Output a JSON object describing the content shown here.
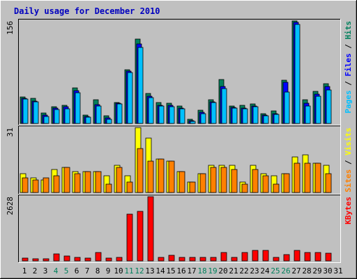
{
  "chart_data": {
    "type": "bar",
    "title": "Daily usage for December 2010",
    "x_labels": [
      "1",
      "2",
      "3",
      "4",
      "5",
      "6",
      "7",
      "8",
      "9",
      "10",
      "11",
      "12",
      "13",
      "14",
      "15",
      "16",
      "17",
      "18",
      "19",
      "20",
      "21",
      "22",
      "23",
      "24",
      "25",
      "26",
      "27",
      "28",
      "29",
      "30",
      "31"
    ],
    "weekend_days": [
      "4",
      "5",
      "11",
      "12",
      "18",
      "19",
      "25",
      "26"
    ],
    "colors": {
      "background": "#c0c0c0",
      "title": "#0000c0",
      "hits": "#00805c",
      "files": "#0000ff",
      "pages": "#00c0ff",
      "visits": "#ffff00",
      "sites": "#ff8000",
      "kbytes": "#ff0000",
      "weekday_label": "#000000",
      "weekend_label": "#00805c"
    },
    "panels": [
      {
        "ymax_label": "156",
        "ylim": [
          0,
          156
        ],
        "legend": [
          {
            "text": "Pages",
            "color": "#00c0ff"
          },
          {
            "text": " / ",
            "color": "#000000"
          },
          {
            "text": "Files",
            "color": "#0000ff"
          },
          {
            "text": " / ",
            "color": "#000000"
          },
          {
            "text": "Hits",
            "color": "#00805c"
          }
        ],
        "series": [
          {
            "name": "Hits",
            "color": "#00805c",
            "values": [
              40,
              38,
              16,
              25,
              28,
              54,
              13,
              36,
              12,
              32,
              82,
              128,
              46,
              32,
              31,
              27,
              6,
              20,
              36,
              67,
              27,
              28,
              30,
              15,
              19,
              66,
              156,
              36,
              49,
              61,
              0
            ]
          },
          {
            "name": "Files",
            "color": "#0000ff",
            "values": [
              38,
              34,
              13,
              23,
              25,
              50,
              11,
              29,
              8,
              31,
              80,
              121,
              41,
              28,
              28,
              23,
              4,
              17,
              33,
              56,
              24,
              23,
              26,
              13,
              15,
              63,
              154,
              31,
              45,
              56,
              0
            ]
          },
          {
            "name": "Pages",
            "color": "#00c0ff",
            "values": [
              37,
              33,
              11,
              21,
              22,
              47,
              10,
              27,
              6,
              30,
              77,
              116,
              39,
              27,
              25,
              22,
              3,
              15,
              32,
              53,
              23,
              22,
              25,
              12,
              14,
              48,
              151,
              27,
              41,
              51,
              0
            ]
          }
        ]
      },
      {
        "ymax_label": "31",
        "ylim": [
          0,
          31
        ],
        "legend": [
          {
            "text": "Sites",
            "color": "#ff8000"
          },
          {
            "text": " / ",
            "color": "#000000"
          },
          {
            "text": "Visits",
            "color": "#ffff00"
          }
        ],
        "series": [
          {
            "name": "Visits",
            "color": "#ffff00",
            "values": [
              9,
              7,
              6,
              11,
              12,
              10,
              10,
              10,
              8,
              13,
              8,
              31,
              26,
              16,
              15,
              10,
              5,
              9,
              13,
              13,
              13,
              5,
              13,
              9,
              8,
              9,
              17,
              18,
              14,
              13,
              0
            ]
          },
          {
            "name": "Sites",
            "color": "#ff8000",
            "values": [
              7,
              6,
              7,
              8,
              12,
              9,
              10,
              10,
              4,
              12,
              5,
              21,
              15,
              16,
              15,
              10,
              5,
              9,
              12,
              12,
              11,
              4,
              11,
              8,
              4,
              9,
              14,
              14,
              14,
              9,
              0
            ]
          }
        ]
      },
      {
        "ymax_label": "2628",
        "ylim": [
          0,
          2628
        ],
        "legend": [
          {
            "text": "KBytes",
            "color": "#ff0000"
          }
        ],
        "series": [
          {
            "name": "KBytes",
            "color": "#ff0000",
            "values": [
              100,
              80,
              80,
              290,
              200,
              130,
              120,
              330,
              120,
              130,
              1910,
              2020,
              2628,
              150,
              240,
              140,
              150,
              150,
              150,
              350,
              130,
              350,
              440,
              440,
              130,
              270,
              420,
              350,
              350,
              300,
              0
            ]
          }
        ]
      }
    ]
  }
}
